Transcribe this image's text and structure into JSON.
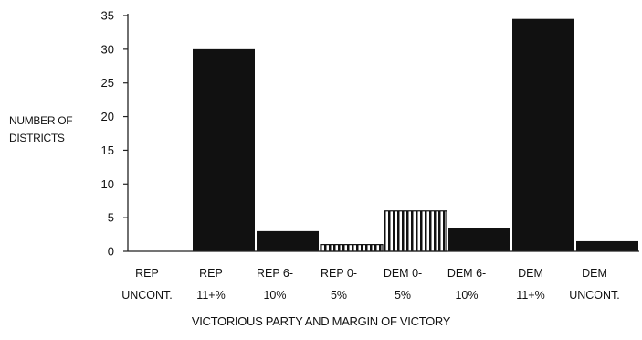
{
  "chart_data": {
    "type": "bar",
    "title": "",
    "ylabel": "NUMBER OF\nDISTRICTS",
    "xlabel": "VICTORIOUS PARTY AND MARGIN OF VICTORY",
    "ylim": [
      0,
      35
    ],
    "yticks": [
      0,
      5,
      10,
      15,
      20,
      25,
      30,
      35
    ],
    "categories": [
      [
        "REP",
        "UNCONT."
      ],
      [
        "REP",
        "11+%"
      ],
      [
        "REP 6-",
        "10%"
      ],
      [
        "REP 0-",
        "5%"
      ],
      [
        "DEM 0-",
        "5%"
      ],
      [
        "DEM 6-",
        "10%"
      ],
      [
        "DEM",
        "11+%"
      ],
      [
        "DEM",
        "UNCONT."
      ]
    ],
    "values": [
      0,
      30,
      3,
      1,
      6,
      3.5,
      34.5,
      1.5
    ],
    "bar_styles": [
      "solid",
      "solid",
      "solid",
      "vertical-stripes",
      "vertical-stripes",
      "solid",
      "solid",
      "solid"
    ],
    "colors": {
      "bar": "#111111",
      "axis": "#222222",
      "stripe_bg": "#ffffff"
    },
    "grid": false
  }
}
